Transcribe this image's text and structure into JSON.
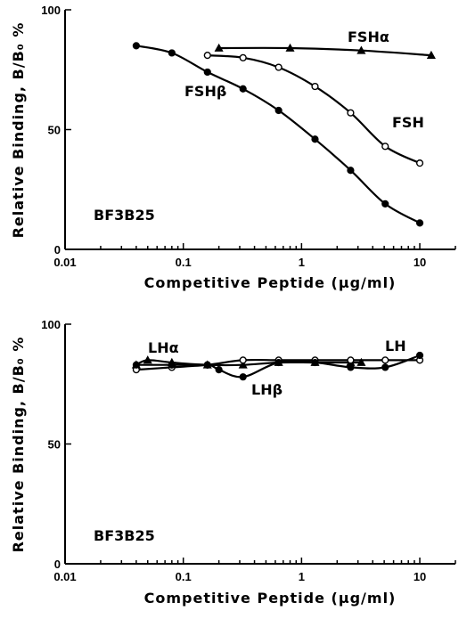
{
  "chart_data": [
    {
      "type": "line",
      "x_scale": "log",
      "xlim": [
        0.01,
        20
      ],
      "ylim": [
        0,
        100
      ],
      "xticks": [
        "0.01",
        "0.1",
        "1",
        "10"
      ],
      "yticks": [
        "0",
        "50",
        "100"
      ],
      "xlabel": "Competitive Peptide (µg/ml)",
      "ylabel": "Relative Binding, B/B₀ %",
      "panel_label": "BF3B25",
      "series": [
        {
          "name": "FSHα",
          "marker": "triangle-filled",
          "x": [
            0.2,
            0.8,
            3.2,
            12.5
          ],
          "y": [
            84,
            84,
            83,
            81
          ]
        },
        {
          "name": "FSH",
          "marker": "circle-open",
          "x": [
            0.16,
            0.32,
            0.64,
            1.3,
            2.6,
            5.1,
            10
          ],
          "y": [
            81,
            80,
            76,
            68,
            57,
            43,
            36
          ]
        },
        {
          "name": "FSHβ",
          "marker": "circle-filled",
          "x": [
            0.04,
            0.08,
            0.16,
            0.32,
            0.64,
            1.3,
            2.6,
            5.1,
            10
          ],
          "y": [
            85,
            82,
            74,
            67,
            58,
            46,
            33,
            19,
            11
          ]
        }
      ],
      "grid": false
    },
    {
      "type": "line",
      "x_scale": "log",
      "xlim": [
        0.01,
        20
      ],
      "ylim": [
        0,
        100
      ],
      "xticks": [
        "0.01",
        "0.1",
        "1",
        "10"
      ],
      "yticks": [
        "0",
        "50",
        "100"
      ],
      "xlabel": "Competitive Peptide (µg/ml)",
      "ylabel": "Relative Binding, B/B₀ %",
      "panel_label": "BF3B25",
      "series": [
        {
          "name": "LHα",
          "marker": "triangle-filled",
          "x": [
            0.04,
            0.05,
            0.08,
            0.16,
            0.32,
            0.64,
            1.3,
            2.6,
            3.2
          ],
          "y": [
            83,
            85,
            84,
            83,
            83,
            84,
            84,
            84,
            84
          ]
        },
        {
          "name": "LH",
          "marker": "circle-open",
          "x": [
            0.04,
            0.08,
            0.16,
            0.32,
            0.64,
            1.3,
            2.6,
            5.1,
            10
          ],
          "y": [
            81,
            82,
            83,
            85,
            85,
            85,
            85,
            85,
            85
          ]
        },
        {
          "name": "LHβ",
          "marker": "circle-filled",
          "x": [
            0.04,
            0.08,
            0.16,
            0.2,
            0.32,
            0.64,
            1.3,
            2.6,
            5.1,
            10
          ],
          "y": [
            83,
            83,
            83,
            81,
            78,
            84,
            84,
            82,
            82,
            87
          ]
        }
      ],
      "grid": false
    }
  ]
}
